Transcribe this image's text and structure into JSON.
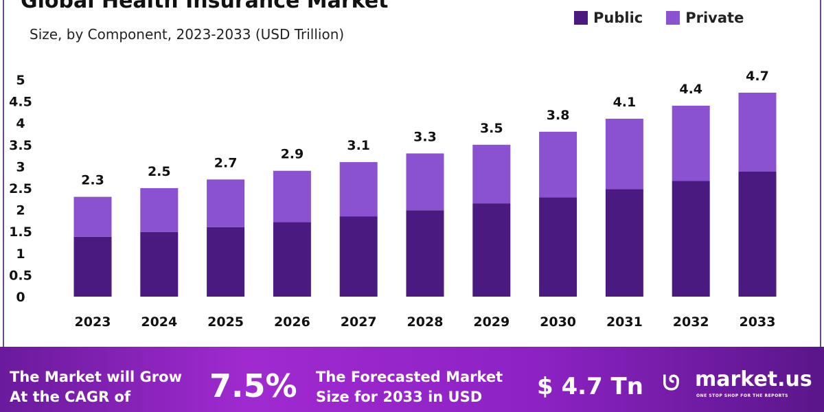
{
  "chart_data": {
    "type": "bar",
    "stacked": true,
    "title": "Global Health Insurance Market",
    "subtitle": "Size, by Component, 2023-2033 (USD Trillion)",
    "categories": [
      "2023",
      "2024",
      "2025",
      "2026",
      "2027",
      "2028",
      "2029",
      "2030",
      "2031",
      "2032",
      "2033"
    ],
    "series": [
      {
        "name": "Public",
        "color": "#4b1a80",
        "values": [
          1.38,
          1.49,
          1.6,
          1.72,
          1.85,
          1.99,
          2.15,
          2.29,
          2.48,
          2.67,
          2.88
        ]
      },
      {
        "name": "Private",
        "color": "#8a52d0",
        "values": [
          0.92,
          1.01,
          1.1,
          1.18,
          1.25,
          1.31,
          1.35,
          1.51,
          1.62,
          1.73,
          1.82
        ]
      }
    ],
    "totals": [
      "2.3",
      "2.5",
      "2.7",
      "2.9",
      "3.1",
      "3.3",
      "3.5",
      "3.8",
      "4.1",
      "4.4",
      "4.7"
    ],
    "yticks": [
      "0",
      "0.5",
      "1",
      "1.5",
      "2",
      "2.5",
      "3",
      "3.5",
      "4",
      "4.5",
      "5"
    ],
    "ylim": [
      0,
      5
    ],
    "grid": false,
    "legend": "top-right"
  },
  "footer": {
    "cagr_label_1": "The Market will Grow",
    "cagr_label_2": "At the CAGR of",
    "cagr_value": "7.5%",
    "forecast_label_1": "The Forecasted Market",
    "forecast_label_2": "Size for 2033 in USD",
    "forecast_value": "$ 4.7 Tn",
    "logo_text": "market.us",
    "logo_tagline": "ONE STOP SHOP FOR THE REPORTS"
  }
}
